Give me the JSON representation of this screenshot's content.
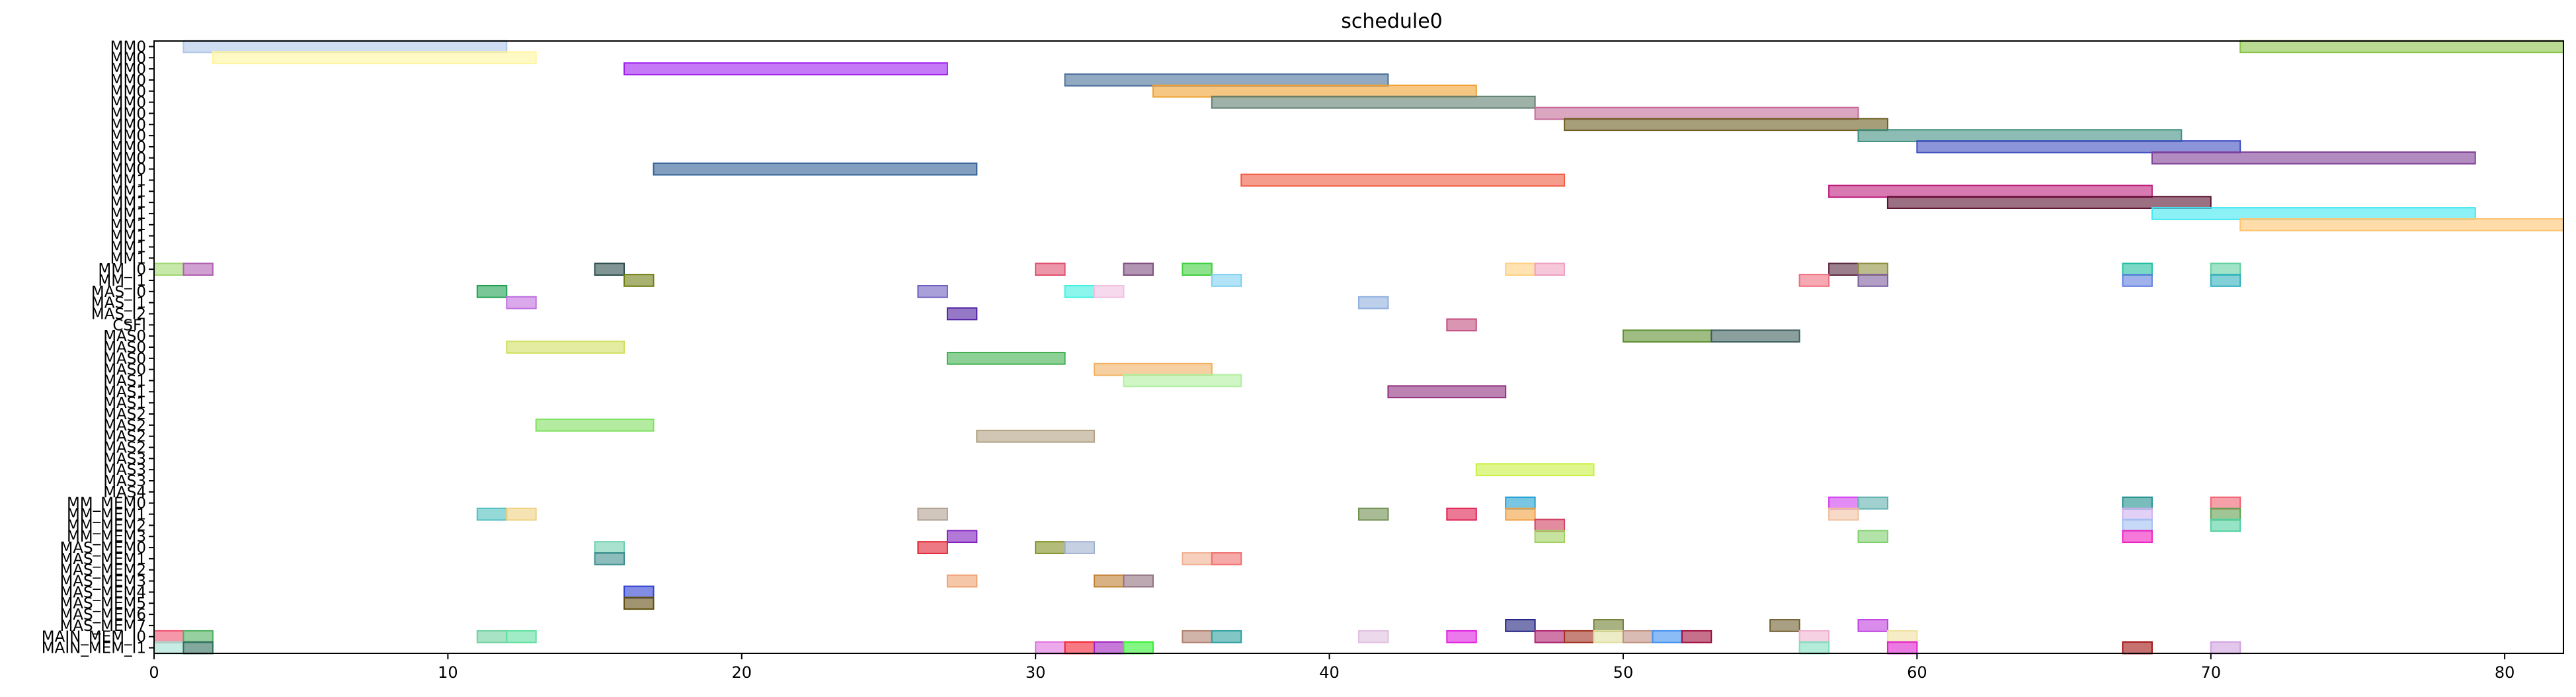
{
  "chart_data": {
    "type": "gantt",
    "title": "schedule0",
    "xlabel": "",
    "ylabel": "",
    "xlim": [
      0,
      82
    ],
    "xticks": [
      0,
      10,
      20,
      30,
      40,
      50,
      60,
      70,
      80
    ],
    "grid": false,
    "rows": [
      "MM0",
      "MM0",
      "MM0",
      "MM0",
      "MM0",
      "MM0",
      "MM0",
      "MM0",
      "MM0",
      "MM0",
      "MM0",
      "MM0",
      "MM1",
      "MM1",
      "MM1",
      "MM1",
      "MM1",
      "MM1",
      "MM1",
      "MM1",
      "MM_I0",
      "MM_I1",
      "MAS_I0",
      "MAS_I1",
      "MAS_I2",
      "CSFI",
      "MAS0",
      "MAS0",
      "MAS0",
      "MAS0",
      "MAS1",
      "MAS1",
      "MAS1",
      "MAS2",
      "MAS2",
      "MAS2",
      "MAS2",
      "MAS3",
      "MAS3",
      "MAS3",
      "MAS4",
      "MM_MEM0",
      "MM_MEM1",
      "MM_MEM2",
      "MM_MEM3",
      "MAS_MEM0",
      "MAS_MEM1",
      "MAS_MEM2",
      "MAS_MEM3",
      "MAS_MEM4",
      "MAS_MEM5",
      "MAS_MEM6",
      "MAS_MEM7",
      "MAIN_MEM_I0",
      "MAIN_MEM_I1"
    ],
    "bars": [
      {
        "row": 0,
        "start": 1,
        "end": 12,
        "color": "#aec7e8"
      },
      {
        "row": 0,
        "start": 71,
        "end": 82,
        "color": "#8bc34a"
      },
      {
        "row": 1,
        "start": 2,
        "end": 13,
        "color": "#fff59d"
      },
      {
        "row": 2,
        "start": 16,
        "end": 27,
        "color": "#a020f0"
      },
      {
        "row": 3,
        "start": 31,
        "end": 42,
        "color": "#4a6f9a"
      },
      {
        "row": 4,
        "start": 34,
        "end": 45,
        "color": "#f0a030"
      },
      {
        "row": 5,
        "start": 36,
        "end": 47,
        "color": "#5f7f70"
      },
      {
        "row": 6,
        "start": 47,
        "end": 58,
        "color": "#c36b96"
      },
      {
        "row": 7,
        "start": 48,
        "end": 59,
        "color": "#6b5e1e"
      },
      {
        "row": 8,
        "start": 58,
        "end": 69,
        "color": "#3f8f80"
      },
      {
        "row": 9,
        "start": 60,
        "end": 71,
        "color": "#3f4fbf"
      },
      {
        "row": 10,
        "start": 68,
        "end": 79,
        "color": "#7f3f97"
      },
      {
        "row": 11,
        "start": 17,
        "end": 28,
        "color": "#2f5f96"
      },
      {
        "row": 12,
        "start": 37,
        "end": 48,
        "color": "#f05a40"
      },
      {
        "row": 13,
        "start": 57,
        "end": 68,
        "color": "#c0207f"
      },
      {
        "row": 14,
        "start": 59,
        "end": 70,
        "color": "#5a1030"
      },
      {
        "row": 15,
        "start": 68,
        "end": 79,
        "color": "#40e8f0"
      },
      {
        "row": 16,
        "start": 71,
        "end": 82,
        "color": "#ffc470"
      },
      {
        "row": 20,
        "start": 0,
        "end": 1,
        "color": "#a0d870"
      },
      {
        "row": 20,
        "start": 1,
        "end": 2,
        "color": "#b060b0"
      },
      {
        "row": 20,
        "start": 15,
        "end": 16,
        "color": "#2f4f4f"
      },
      {
        "row": 20,
        "start": 30,
        "end": 31,
        "color": "#e0506f"
      },
      {
        "row": 20,
        "start": 33,
        "end": 34,
        "color": "#7f4f7f"
      },
      {
        "row": 20,
        "start": 35,
        "end": 36,
        "color": "#40d040"
      },
      {
        "row": 20,
        "start": 46,
        "end": 47,
        "color": "#ffd080"
      },
      {
        "row": 20,
        "start": 47,
        "end": 48,
        "color": "#f0a0c0"
      },
      {
        "row": 20,
        "start": 57,
        "end": 58,
        "color": "#5a2a40"
      },
      {
        "row": 20,
        "start": 58,
        "end": 59,
        "color": "#8f8f40"
      },
      {
        "row": 20,
        "start": 67,
        "end": 68,
        "color": "#20c0a0"
      },
      {
        "row": 20,
        "start": 70,
        "end": 71,
        "color": "#60d0a0"
      },
      {
        "row": 21,
        "start": 16,
        "end": 17,
        "color": "#6f7f10"
      },
      {
        "row": 21,
        "start": 36,
        "end": 37,
        "color": "#7fd0f0"
      },
      {
        "row": 21,
        "start": 56,
        "end": 57,
        "color": "#f06f7f"
      },
      {
        "row": 21,
        "start": 58,
        "end": 59,
        "color": "#7f5f9f"
      },
      {
        "row": 21,
        "start": 67,
        "end": 68,
        "color": "#5f7fe0"
      },
      {
        "row": 21,
        "start": 70,
        "end": 71,
        "color": "#30b0c0"
      },
      {
        "row": 22,
        "start": 11,
        "end": 12,
        "color": "#20a050"
      },
      {
        "row": 22,
        "start": 26,
        "end": 27,
        "color": "#6f5fc0"
      },
      {
        "row": 22,
        "start": 31,
        "end": 32,
        "color": "#40f0e0"
      },
      {
        "row": 22,
        "start": 32,
        "end": 33,
        "color": "#f0c0e0"
      },
      {
        "row": 23,
        "start": 12,
        "end": 13,
        "color": "#c070e0"
      },
      {
        "row": 23,
        "start": 41,
        "end": 42,
        "color": "#90b0e0"
      },
      {
        "row": 24,
        "start": 27,
        "end": 28,
        "color": "#5020a0"
      },
      {
        "row": 25,
        "start": 44,
        "end": 45,
        "color": "#c04f7f"
      },
      {
        "row": 26,
        "start": 50,
        "end": 53,
        "color": "#5f8f30"
      },
      {
        "row": 26,
        "start": 53,
        "end": 56,
        "color": "#3f5f5f"
      },
      {
        "row": 27,
        "start": 12,
        "end": 16,
        "color": "#d0e060"
      },
      {
        "row": 28,
        "start": 27,
        "end": 31,
        "color": "#40b050"
      },
      {
        "row": 29,
        "start": 32,
        "end": 36,
        "color": "#f0b060"
      },
      {
        "row": 30,
        "start": 33,
        "end": 37,
        "color": "#b0f0a0"
      },
      {
        "row": 31,
        "start": 42,
        "end": 46,
        "color": "#90307f"
      },
      {
        "row": 34,
        "start": 13,
        "end": 17,
        "color": "#80e060"
      },
      {
        "row": 35,
        "start": 28,
        "end": 32,
        "color": "#b0a080"
      },
      {
        "row": 38,
        "start": 45,
        "end": 49,
        "color": "#c8f040"
      },
      {
        "row": 41,
        "start": 46,
        "end": 47,
        "color": "#20a0d0"
      },
      {
        "row": 41,
        "start": 57,
        "end": 58,
        "color": "#d040f0"
      },
      {
        "row": 41,
        "start": 58,
        "end": 59,
        "color": "#60b0b0"
      },
      {
        "row": 41,
        "start": 67,
        "end": 68,
        "color": "#208f8f"
      },
      {
        "row": 41,
        "start": 70,
        "end": 71,
        "color": "#f06070"
      },
      {
        "row": 42,
        "start": 11,
        "end": 12,
        "color": "#50c0c0"
      },
      {
        "row": 42,
        "start": 12,
        "end": 13,
        "color": "#f0d080"
      },
      {
        "row": 42,
        "start": 26,
        "end": 27,
        "color": "#b0a090"
      },
      {
        "row": 42,
        "start": 41,
        "end": 42,
        "color": "#709050"
      },
      {
        "row": 42,
        "start": 44,
        "end": 45,
        "color": "#e02050"
      },
      {
        "row": 42,
        "start": 46,
        "end": 47,
        "color": "#f0a040"
      },
      {
        "row": 42,
        "start": 57,
        "end": 58,
        "color": "#f0c0a0"
      },
      {
        "row": 42,
        "start": 67,
        "end": 68,
        "color": "#d0b0f0"
      },
      {
        "row": 42,
        "start": 70,
        "end": 71,
        "color": "#60a050"
      },
      {
        "row": 43,
        "start": 47,
        "end": 48,
        "color": "#d04060"
      },
      {
        "row": 43,
        "start": 67,
        "end": 68,
        "color": "#a0c0f0"
      },
      {
        "row": 43,
        "start": 70,
        "end": 71,
        "color": "#50d0a0"
      },
      {
        "row": 44,
        "start": 27,
        "end": 28,
        "color": "#8020c0"
      },
      {
        "row": 44,
        "start": 47,
        "end": 48,
        "color": "#a0d060"
      },
      {
        "row": 44,
        "start": 58,
        "end": 59,
        "color": "#80d070"
      },
      {
        "row": 44,
        "start": 67,
        "end": 68,
        "color": "#f020c0"
      },
      {
        "row": 45,
        "start": 15,
        "end": 16,
        "color": "#70d0b0"
      },
      {
        "row": 45,
        "start": 26,
        "end": 27,
        "color": "#e02030"
      },
      {
        "row": 45,
        "start": 30,
        "end": 31,
        "color": "#809020"
      },
      {
        "row": 45,
        "start": 31,
        "end": 32,
        "color": "#a0b0d0"
      },
      {
        "row": 46,
        "start": 15,
        "end": 16,
        "color": "#408f8f"
      },
      {
        "row": 46,
        "start": 35,
        "end": 36,
        "color": "#f0b090"
      },
      {
        "row": 46,
        "start": 36,
        "end": 37,
        "color": "#f07070"
      },
      {
        "row": 48,
        "start": 27,
        "end": 28,
        "color": "#f0a070"
      },
      {
        "row": 48,
        "start": 32,
        "end": 33,
        "color": "#c07f30"
      },
      {
        "row": 48,
        "start": 33,
        "end": 34,
        "color": "#8f6f7f"
      },
      {
        "row": 49,
        "start": 16,
        "end": 17,
        "color": "#3040d0"
      },
      {
        "row": 50,
        "start": 16,
        "end": 17,
        "color": "#604f10"
      },
      {
        "row": 52,
        "start": 46,
        "end": 47,
        "color": "#1f1f7f"
      },
      {
        "row": 52,
        "start": 49,
        "end": 50,
        "color": "#6f7f30"
      },
      {
        "row": 52,
        "start": 55,
        "end": 56,
        "color": "#6f5f30"
      },
      {
        "row": 52,
        "start": 58,
        "end": 59,
        "color": "#c040e0"
      },
      {
        "row": 53,
        "start": 0,
        "end": 1,
        "color": "#f05070"
      },
      {
        "row": 53,
        "start": 1,
        "end": 2,
        "color": "#50b060"
      },
      {
        "row": 53,
        "start": 11,
        "end": 12,
        "color": "#70d0a0"
      },
      {
        "row": 53,
        "start": 12,
        "end": 13,
        "color": "#60e0a0"
      },
      {
        "row": 53,
        "start": 35,
        "end": 36,
        "color": "#b08070"
      },
      {
        "row": 53,
        "start": 36,
        "end": 37,
        "color": "#30a0a0"
      },
      {
        "row": 53,
        "start": 41,
        "end": 42,
        "color": "#e0c0e0"
      },
      {
        "row": 53,
        "start": 44,
        "end": 45,
        "color": "#e020e0"
      },
      {
        "row": 53,
        "start": 47,
        "end": 48,
        "color": "#b02070"
      },
      {
        "row": 53,
        "start": 48,
        "end": 49,
        "color": "#a03020"
      },
      {
        "row": 53,
        "start": 49,
        "end": 50,
        "color": "#e0e0a0"
      },
      {
        "row": 53,
        "start": 50,
        "end": 51,
        "color": "#c09080"
      },
      {
        "row": 53,
        "start": 51,
        "end": 52,
        "color": "#4090f0"
      },
      {
        "row": 53,
        "start": 52,
        "end": 53,
        "color": "#a01040"
      },
      {
        "row": 53,
        "start": 56,
        "end": 57,
        "color": "#f0b0d0"
      },
      {
        "row": 53,
        "start": 59,
        "end": 60,
        "color": "#f0e0a0"
      },
      {
        "row": 54,
        "start": 0,
        "end": 1,
        "color": "#a0e0d0"
      },
      {
        "row": 54,
        "start": 1,
        "end": 2,
        "color": "#306f5f"
      },
      {
        "row": 54,
        "start": 30,
        "end": 31,
        "color": "#e070e0"
      },
      {
        "row": 54,
        "start": 31,
        "end": 32,
        "color": "#f02030"
      },
      {
        "row": 54,
        "start": 32,
        "end": 33,
        "color": "#a020c0"
      },
      {
        "row": 54,
        "start": 33,
        "end": 34,
        "color": "#30f030"
      },
      {
        "row": 54,
        "start": 56,
        "end": 57,
        "color": "#80e0c0"
      },
      {
        "row": 54,
        "start": 59,
        "end": 60,
        "color": "#e020d0"
      },
      {
        "row": 54,
        "start": 67,
        "end": 68,
        "color": "#a01010"
      },
      {
        "row": 54,
        "start": 70,
        "end": 71,
        "color": "#d0a0e0"
      }
    ]
  }
}
